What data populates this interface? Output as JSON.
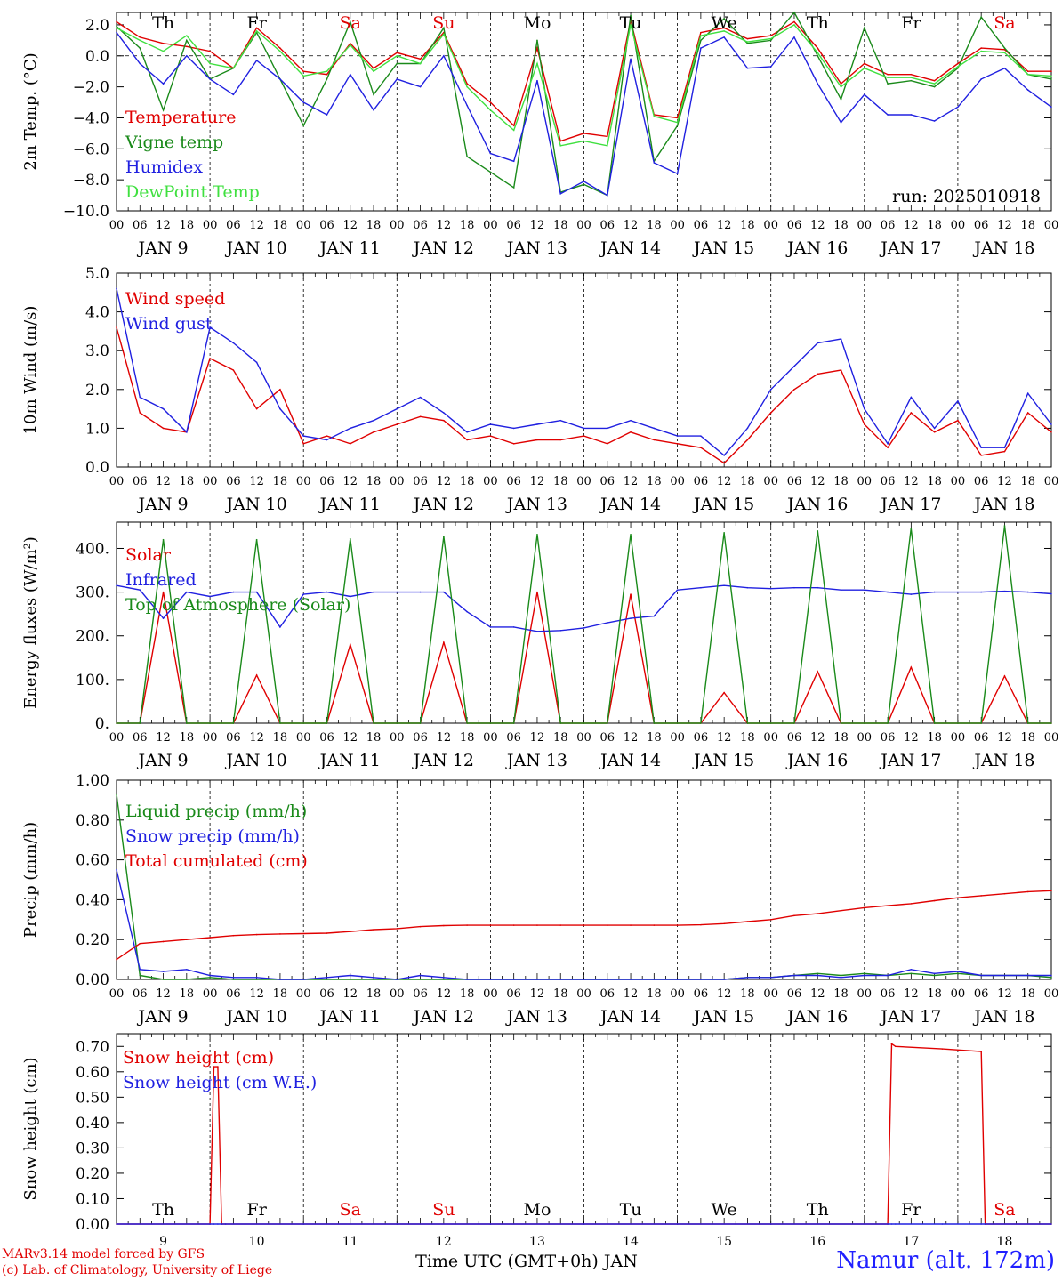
{
  "run_label": "run: 2025010918",
  "footer": {
    "credit_line1": "MARv3.14 model forced by GFS",
    "credit_line2": "(c) Lab. of Climatology, University of Liege",
    "station": "Namur (alt. 172m)",
    "xlabel": "Time UTC (GMT+0h) JAN"
  },
  "hour_labels": [
    "00",
    "06",
    "12",
    "18"
  ],
  "date_labels": [
    "JAN  9",
    "JAN 10",
    "JAN 11",
    "JAN 12",
    "JAN 13",
    "JAN 14",
    "JAN 15",
    "JAN 16",
    "JAN 17",
    "JAN 18"
  ],
  "weekdays": [
    {
      "label": "Th",
      "color": "#000000"
    },
    {
      "label": "Fr",
      "color": "#000000"
    },
    {
      "label": "Sa",
      "color": "#e00000"
    },
    {
      "label": "Su",
      "color": "#e00000"
    },
    {
      "label": "Mo",
      "color": "#000000"
    },
    {
      "label": "Tu",
      "color": "#000000"
    },
    {
      "label": "We",
      "color": "#000000"
    },
    {
      "label": "Th",
      "color": "#000000"
    },
    {
      "label": "Fr",
      "color": "#000000"
    },
    {
      "label": "Sa",
      "color": "#e00000"
    }
  ],
  "day_numbers": [
    "9",
    "10",
    "11",
    "12",
    "13",
    "14",
    "15",
    "16",
    "17",
    "18"
  ],
  "chart_data": [
    {
      "type": "line",
      "ylabel": "2m Temp. (°C)",
      "ylim": [
        -10,
        2.8
      ],
      "yticks": [
        2,
        0,
        -2,
        -4,
        -6,
        -8,
        -10
      ],
      "ytick_labels": [
        "2.0",
        "0.0",
        "−2.0",
        "−4.0",
        "−6.0",
        "−8.0",
        "−10.0"
      ],
      "zero_line": true,
      "x_hours": [
        0,
        6,
        12,
        18,
        24,
        30,
        36,
        42,
        48,
        54,
        60,
        66,
        72,
        78,
        84,
        90,
        96,
        102,
        108,
        114,
        120,
        126,
        132,
        138,
        144,
        150,
        156,
        162,
        168,
        174,
        180,
        186,
        192,
        198,
        204,
        210,
        216,
        222,
        228,
        234,
        240
      ],
      "series": [
        {
          "name": "Temperature",
          "color": "#e00000",
          "values": [
            2.2,
            1.2,
            0.8,
            0.6,
            0.3,
            -0.8,
            1.8,
            0.5,
            -1.0,
            -1.2,
            0.8,
            -0.8,
            0.2,
            -0.2,
            1.5,
            -1.8,
            -3.0,
            -4.5,
            0.5,
            -5.5,
            -5.0,
            -5.2,
            2.3,
            -3.8,
            -4.0,
            1.5,
            1.8,
            1.1,
            1.3,
            2.2,
            0.5,
            -1.8,
            -0.5,
            -1.2,
            -1.2,
            -1.6,
            -0.5,
            0.5,
            0.4,
            -1.0,
            -1.0
          ]
        },
        {
          "name": "Vigne temp",
          "color": "#1a8a1a",
          "values": [
            1.9,
            0.5,
            -3.5,
            1.0,
            -1.5,
            -0.8,
            1.5,
            -1.5,
            -4.5,
            -1.5,
            2.2,
            -2.5,
            -0.5,
            -0.5,
            1.8,
            -6.5,
            -7.5,
            -8.5,
            1.0,
            -8.8,
            -8.3,
            -9.0,
            2.6,
            -6.8,
            -4.5,
            1.0,
            2.4,
            0.8,
            1.0,
            2.8,
            0.0,
            -2.8,
            1.8,
            -1.8,
            -1.6,
            -2.0,
            -0.8,
            2.5,
            0.5,
            -1.2,
            -1.5
          ]
        },
        {
          "name": "Humidex",
          "color": "#2020e0",
          "values": [
            1.5,
            -0.5,
            -1.8,
            0.0,
            -1.5,
            -2.5,
            -0.3,
            -1.5,
            -3.0,
            -3.8,
            -1.2,
            -3.5,
            -1.5,
            -2.0,
            0.0,
            -3.2,
            -6.3,
            -6.8,
            -1.6,
            -8.9,
            -8.1,
            -9.0,
            -0.2,
            -6.9,
            -7.6,
            0.5,
            1.2,
            -0.8,
            -0.7,
            1.2,
            -1.8,
            -4.3,
            -2.5,
            -3.8,
            -3.8,
            -4.2,
            -3.3,
            -1.5,
            -0.8,
            -2.2,
            -3.3
          ]
        },
        {
          "name": "DewPoint Temp",
          "color": "#40e040",
          "values": [
            1.8,
            1.0,
            0.3,
            1.3,
            -0.5,
            -0.8,
            1.6,
            0.3,
            -1.3,
            -1.0,
            0.7,
            -1.0,
            0.0,
            -0.5,
            1.4,
            -2.0,
            -3.5,
            -4.8,
            -0.5,
            -5.8,
            -5.5,
            -5.8,
            2.0,
            -3.9,
            -4.3,
            1.3,
            1.6,
            0.9,
            1.1,
            2.0,
            0.2,
            -2.0,
            -0.8,
            -1.4,
            -1.4,
            -1.8,
            -0.7,
            0.3,
            0.2,
            -1.2,
            -1.3
          ]
        }
      ]
    },
    {
      "type": "line",
      "ylabel": "10m Wind (m/s)",
      "ylim": [
        0,
        5
      ],
      "yticks": [
        0,
        1,
        2,
        3,
        4,
        5
      ],
      "ytick_labels": [
        "0.0",
        "1.0",
        "2.0",
        "3.0",
        "4.0",
        "5.0"
      ],
      "x_hours": [
        0,
        6,
        12,
        18,
        24,
        30,
        36,
        42,
        48,
        54,
        60,
        66,
        72,
        78,
        84,
        90,
        96,
        102,
        108,
        114,
        120,
        126,
        132,
        138,
        144,
        150,
        156,
        162,
        168,
        174,
        180,
        186,
        192,
        198,
        204,
        210,
        216,
        222,
        228,
        234,
        240
      ],
      "series": [
        {
          "name": "Wind speed",
          "color": "#e00000",
          "values": [
            3.6,
            1.4,
            1.0,
            0.9,
            2.8,
            2.5,
            1.5,
            2.0,
            0.6,
            0.8,
            0.6,
            0.9,
            1.1,
            1.3,
            1.2,
            0.7,
            0.8,
            0.6,
            0.7,
            0.7,
            0.8,
            0.6,
            0.9,
            0.7,
            0.6,
            0.5,
            0.1,
            0.7,
            1.4,
            2.0,
            2.4,
            2.5,
            1.1,
            0.5,
            1.4,
            0.9,
            1.2,
            0.3,
            0.4,
            1.4,
            0.9
          ]
        },
        {
          "name": "Wind gust",
          "color": "#2020e0",
          "values": [
            4.6,
            1.8,
            1.5,
            0.9,
            3.6,
            3.2,
            2.7,
            1.5,
            0.8,
            0.7,
            1.0,
            1.2,
            1.5,
            1.8,
            1.4,
            0.9,
            1.1,
            1.0,
            1.1,
            1.2,
            1.0,
            1.0,
            1.2,
            1.0,
            0.8,
            0.8,
            0.3,
            1.0,
            2.0,
            2.6,
            3.2,
            3.3,
            1.5,
            0.6,
            1.8,
            1.0,
            1.7,
            0.5,
            0.5,
            1.9,
            1.1
          ]
        }
      ]
    },
    {
      "type": "line",
      "ylabel": "Energy fluxes (W/m²)",
      "ylim": [
        0,
        460
      ],
      "yticks": [
        0,
        100,
        200,
        300,
        400
      ],
      "ytick_labels": [
        "0.",
        "100.",
        "200.",
        "300.",
        "400."
      ],
      "x_hours": [
        0,
        6,
        12,
        18,
        24,
        30,
        36,
        42,
        48,
        54,
        60,
        66,
        72,
        78,
        84,
        90,
        96,
        102,
        108,
        114,
        120,
        126,
        132,
        138,
        144,
        150,
        156,
        162,
        168,
        174,
        180,
        186,
        192,
        198,
        204,
        210,
        216,
        222,
        228,
        234,
        240
      ],
      "series": [
        {
          "name": "Solar",
          "color": "#e00000",
          "values": [
            0,
            0,
            300,
            0,
            0,
            0,
            110,
            0,
            0,
            0,
            180,
            0,
            0,
            0,
            185,
            0,
            0,
            0,
            300,
            0,
            0,
            0,
            295,
            0,
            0,
            0,
            70,
            0,
            0,
            0,
            118,
            0,
            0,
            0,
            128,
            0,
            0,
            0,
            108,
            0,
            0
          ]
        },
        {
          "name": "Infrared",
          "color": "#2020e0",
          "values": [
            315,
            305,
            240,
            300,
            290,
            300,
            300,
            220,
            295,
            300,
            290,
            300,
            300,
            300,
            300,
            255,
            220,
            220,
            210,
            212,
            218,
            230,
            240,
            245,
            305,
            310,
            315,
            310,
            308,
            310,
            310,
            305,
            305,
            300,
            295,
            300,
            300,
            300,
            302,
            300,
            296
          ]
        },
        {
          "name": "Top of Atmosphere (Solar)",
          "color": "#1a8a1a",
          "values": [
            0,
            0,
            420,
            0,
            0,
            0,
            420,
            0,
            0,
            0,
            422,
            0,
            0,
            0,
            427,
            0,
            0,
            0,
            432,
            0,
            0,
            0,
            432,
            0,
            0,
            0,
            436,
            0,
            0,
            0,
            440,
            0,
            0,
            0,
            446,
            0,
            0,
            0,
            452,
            0,
            0
          ]
        }
      ]
    },
    {
      "type": "line",
      "ylabel": "Precip (mm/h)",
      "ylim": [
        0,
        1
      ],
      "yticks": [
        0,
        0.2,
        0.4,
        0.6,
        0.8,
        1.0
      ],
      "ytick_labels": [
        "0.00",
        "0.20",
        "0.40",
        "0.60",
        "0.80",
        "1.00"
      ],
      "x_hours": [
        0,
        6,
        12,
        18,
        24,
        30,
        36,
        42,
        48,
        54,
        60,
        66,
        72,
        78,
        84,
        90,
        96,
        102,
        108,
        114,
        120,
        126,
        132,
        138,
        144,
        150,
        156,
        162,
        168,
        174,
        180,
        186,
        192,
        198,
        204,
        210,
        216,
        222,
        228,
        234,
        240
      ],
      "series": [
        {
          "name": "Liquid precip (mm/h)",
          "color": "#1a8a1a",
          "values": [
            0.93,
            0.02,
            0.0,
            0.0,
            0.01,
            0.0,
            0.0,
            0.0,
            0.0,
            0.0,
            0.0,
            0.0,
            0.0,
            0.0,
            0.0,
            0.0,
            0.0,
            0.0,
            0.0,
            0.0,
            0.0,
            0.0,
            0.0,
            0.0,
            0.0,
            0.0,
            0.0,
            0.01,
            0.01,
            0.02,
            0.03,
            0.02,
            0.03,
            0.02,
            0.03,
            0.02,
            0.03,
            0.02,
            0.02,
            0.02,
            0.01
          ]
        },
        {
          "name": "Snow precip (mm/h)",
          "color": "#2020e0",
          "values": [
            0.55,
            0.05,
            0.04,
            0.05,
            0.02,
            0.01,
            0.01,
            0.0,
            0.0,
            0.01,
            0.02,
            0.01,
            0.0,
            0.02,
            0.01,
            0.0,
            0.0,
            0.0,
            0.0,
            0.0,
            0.0,
            0.0,
            0.0,
            0.0,
            0.0,
            0.0,
            0.0,
            0.01,
            0.01,
            0.02,
            0.02,
            0.01,
            0.02,
            0.02,
            0.05,
            0.03,
            0.04,
            0.02,
            0.02,
            0.02,
            0.02
          ]
        },
        {
          "name": "Total cumulated (cm)",
          "color": "#e00000",
          "values": [
            0.1,
            0.18,
            0.19,
            0.2,
            0.21,
            0.22,
            0.225,
            0.228,
            0.23,
            0.232,
            0.24,
            0.25,
            0.255,
            0.265,
            0.27,
            0.272,
            0.272,
            0.272,
            0.272,
            0.272,
            0.272,
            0.272,
            0.272,
            0.272,
            0.272,
            0.274,
            0.28,
            0.29,
            0.3,
            0.32,
            0.33,
            0.345,
            0.36,
            0.37,
            0.38,
            0.395,
            0.41,
            0.42,
            0.43,
            0.44,
            0.445
          ]
        }
      ]
    },
    {
      "type": "line",
      "ylabel": "Snow height (cm)",
      "ylim": [
        0,
        0.75
      ],
      "yticks": [
        0,
        0.1,
        0.2,
        0.3,
        0.4,
        0.5,
        0.6,
        0.7
      ],
      "ytick_labels": [
        "0.00",
        "0.10",
        "0.20",
        "0.30",
        "0.40",
        "0.50",
        "0.60",
        "0.70"
      ],
      "x_hours": [
        0,
        24,
        25,
        26,
        27,
        28,
        48,
        72,
        96,
        120,
        144,
        168,
        198,
        199,
        200,
        212,
        222,
        223,
        240
      ],
      "series": [
        {
          "name": "Snow height (cm)",
          "color": "#e00000",
          "values": [
            0,
            0,
            0.62,
            0.62,
            0,
            0,
            0,
            0,
            0,
            0,
            0,
            0,
            0,
            0.71,
            0.7,
            0.69,
            0.68,
            0,
            0
          ]
        },
        {
          "name": "Snow height (cm W.E.)",
          "color": "#2020e0",
          "values": [
            0,
            0,
            0,
            0,
            0,
            0,
            0,
            0,
            0,
            0,
            0,
            0,
            0,
            0,
            0,
            0,
            0,
            0,
            0
          ]
        }
      ]
    }
  ]
}
